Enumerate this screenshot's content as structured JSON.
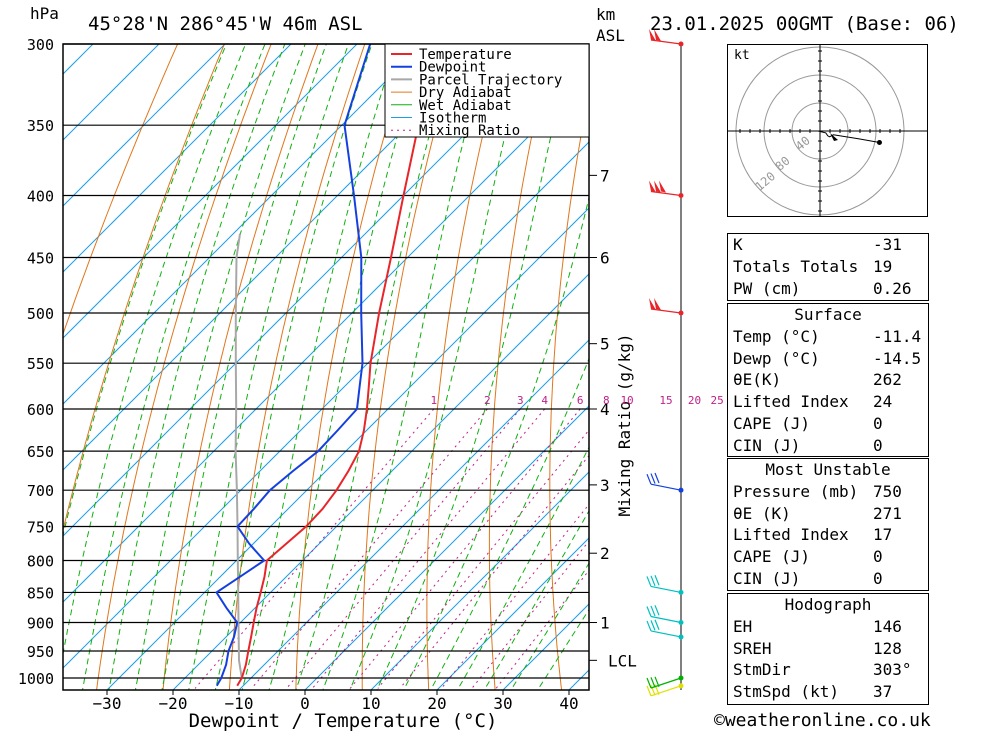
{
  "header": {
    "pressure_unit": "hPa",
    "location": "45°28'N  286°45'W  46m  ASL",
    "height_unit_line1": "km",
    "height_unit_line2": "ASL",
    "datetime": "23.01.2025  00GMT  (Base: 06)"
  },
  "chart_data": {
    "type": "skew-t log-p sounding",
    "xlabel": "Dewpoint / Temperature (°C)",
    "ylabel_left": "hPa",
    "mixing_ratio_axis_label": "Mixing Ratio (g/kg)",
    "pressure_ticks": [
      300,
      350,
      400,
      450,
      500,
      550,
      600,
      650,
      700,
      750,
      800,
      850,
      900,
      950,
      1000
    ],
    "temperature_ticks": [
      -30,
      -20,
      -10,
      0,
      10,
      20,
      30,
      40
    ],
    "height_ticks_km": [
      {
        "label": "7",
        "p": 385
      },
      {
        "label": "6",
        "p": 450
      },
      {
        "label": "5",
        "p": 530
      },
      {
        "label": "4",
        "p": 600
      },
      {
        "label": "3",
        "p": 693
      },
      {
        "label": "2",
        "p": 789
      },
      {
        "label": "1",
        "p": 900
      },
      {
        "label": "LCL",
        "p": 967
      }
    ],
    "mixing_ratio_values": [
      1,
      2,
      3,
      4,
      6,
      8,
      10,
      15,
      20,
      25
    ],
    "legend": [
      "Temperature",
      "Dewpoint",
      "Parcel Trajectory",
      "Dry Adiabat",
      "Wet Adiabat",
      "Isotherm",
      "Mixing Ratio"
    ],
    "series": [
      {
        "name": "Temperature",
        "color": "#e8262a",
        "points": [
          [
            1015,
            -10.9
          ],
          [
            1000,
            -11.4
          ],
          [
            975,
            -12.8
          ],
          [
            950,
            -14.5
          ],
          [
            925,
            -16.2
          ],
          [
            900,
            -18.0
          ],
          [
            875,
            -19.8
          ],
          [
            850,
            -21.5
          ],
          [
            825,
            -23.3
          ],
          [
            800,
            -25.4
          ],
          [
            775,
            -25.0
          ],
          [
            750,
            -24.6
          ],
          [
            725,
            -24.8
          ],
          [
            700,
            -25.5
          ],
          [
            675,
            -26.6
          ],
          [
            650,
            -28.0
          ],
          [
            625,
            -30.4
          ],
          [
            600,
            -33.2
          ],
          [
            575,
            -36.3
          ],
          [
            550,
            -39.6
          ],
          [
            500,
            -45.9
          ],
          [
            450,
            -52.5
          ],
          [
            400,
            -60.0
          ],
          [
            350,
            -68.4
          ],
          [
            300,
            -77.6
          ]
        ]
      },
      {
        "name": "Dewpoint",
        "color": "#1440e0",
        "points": [
          [
            1015,
            -14.0
          ],
          [
            1000,
            -14.5
          ],
          [
            975,
            -15.8
          ],
          [
            950,
            -17.5
          ],
          [
            925,
            -18.8
          ],
          [
            900,
            -20.5
          ],
          [
            875,
            -24.4
          ],
          [
            850,
            -28.2
          ],
          [
            825,
            -27.0
          ],
          [
            800,
            -25.8
          ],
          [
            775,
            -30.6
          ],
          [
            750,
            -35.0
          ],
          [
            725,
            -35.2
          ],
          [
            700,
            -35.6
          ],
          [
            675,
            -35.0
          ],
          [
            650,
            -34.2
          ],
          [
            625,
            -34.4
          ],
          [
            600,
            -34.7
          ],
          [
            575,
            -37.7
          ],
          [
            550,
            -40.8
          ],
          [
            500,
            -48.6
          ],
          [
            450,
            -57.0
          ],
          [
            400,
            -67.5
          ],
          [
            350,
            -79.6
          ],
          [
            300,
            -88.0
          ]
        ]
      },
      {
        "name": "Parcel Trajectory",
        "color": "#a8a8a8",
        "points": [
          [
            1000,
            -11.4
          ],
          [
            967,
            -14.5
          ],
          [
            900,
            -20.3
          ],
          [
            850,
            -24.9
          ],
          [
            800,
            -29.8
          ],
          [
            750,
            -35.0
          ],
          [
            700,
            -40.6
          ],
          [
            650,
            -46.7
          ],
          [
            600,
            -53.0
          ],
          [
            550,
            -60.0
          ],
          [
            500,
            -67.6
          ],
          [
            450,
            -75.9
          ],
          [
            430,
            -79.0
          ]
        ]
      }
    ],
    "wind_barbs": [
      {
        "p": 1015,
        "color": "#e0e000"
      },
      {
        "p": 1000,
        "color": "#00b000"
      },
      {
        "p": 925,
        "color": "#00c0c0"
      },
      {
        "p": 900,
        "color": "#00c0c0"
      },
      {
        "p": 850,
        "color": "#00c0c0"
      },
      {
        "p": 700,
        "color": "#1440e0"
      },
      {
        "p": 500,
        "color": "#e8262a"
      },
      {
        "p": 400,
        "color": "#e8262a"
      },
      {
        "p": 300,
        "color": "#e8262a"
      }
    ]
  },
  "hodograph": {
    "unit_label": "kt",
    "ring_labels": [
      "40",
      "80",
      "120"
    ],
    "points_uv": [
      [
        -2,
        0
      ],
      [
        6,
        -2
      ],
      [
        8,
        -5
      ],
      [
        10,
        -6
      ],
      [
        14,
        -4
      ],
      [
        40,
        -8
      ],
      [
        62,
        -12
      ]
    ]
  },
  "indices": {
    "rows": [
      {
        "label": "K",
        "value": "-31"
      },
      {
        "label": "Totals Totals",
        "value": "19"
      },
      {
        "label": "PW (cm)",
        "value": "0.26"
      }
    ]
  },
  "surface": {
    "title": "Surface",
    "rows": [
      {
        "label": "Temp (°C)",
        "value": "-11.4"
      },
      {
        "label": "Dewp (°C)",
        "value": "-14.5"
      },
      {
        "label": "θE(K)",
        "value": "262"
      },
      {
        "label": "Lifted Index",
        "value": "24"
      },
      {
        "label": "CAPE (J)",
        "value": "0"
      },
      {
        "label": "CIN (J)",
        "value": "0"
      }
    ]
  },
  "most_unstable": {
    "title": "Most Unstable",
    "rows": [
      {
        "label": "Pressure (mb)",
        "value": "750"
      },
      {
        "label": "θE (K)",
        "value": "271"
      },
      {
        "label": "Lifted Index",
        "value": "17"
      },
      {
        "label": "CAPE (J)",
        "value": "0"
      },
      {
        "label": "CIN (J)",
        "value": "0"
      }
    ]
  },
  "hodo_stats": {
    "title": "Hodograph",
    "rows": [
      {
        "label": "EH",
        "value": "146"
      },
      {
        "label": "SREH",
        "value": "128"
      },
      {
        "label": "StmDir",
        "value": "303°"
      },
      {
        "label": "StmSpd (kt)",
        "value": "37"
      }
    ]
  },
  "credit": "©weatheronline.co.uk",
  "colors": {
    "temperature": "#e8262a",
    "dewpoint": "#1440e0",
    "parcel": "#a8a8a8",
    "dry_adiabat": "#e0761c",
    "wet_adiabat": "#10b010",
    "isotherm": "#1a9ee8",
    "mixing_ratio": "#c0208a"
  }
}
